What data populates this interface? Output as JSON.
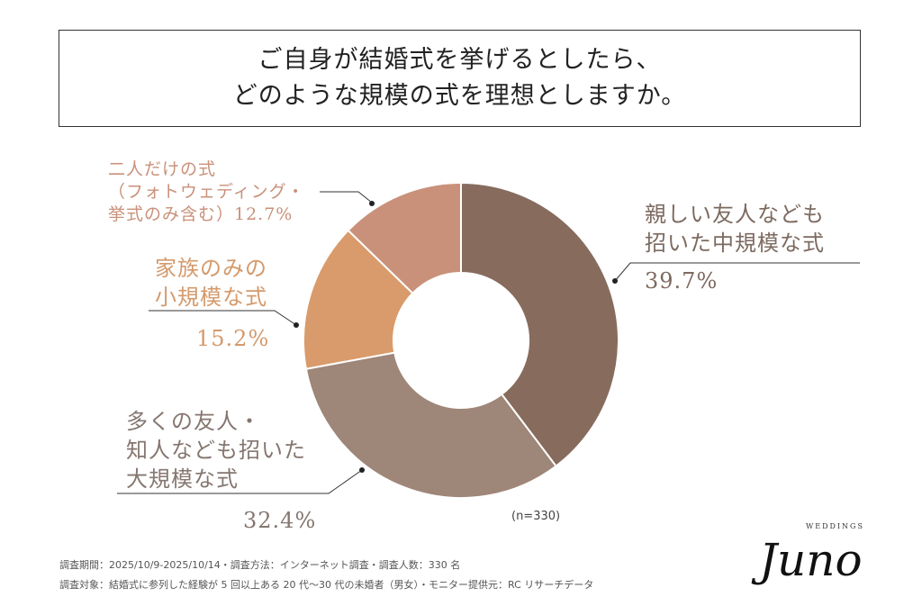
{
  "title": [
    "ご自身が結婚式を挙げるとしたら、",
    "どのような規模の式を理想としますか。"
  ],
  "chart_data": {
    "type": "pie",
    "donut": true,
    "start": "top, clockwise",
    "categories": [
      "親しい友人なども招いた中規模な式",
      "多くの友人・知人なども招いた大規模な式",
      "家族のみの小規模な式",
      "二人だけの式（フォトウェディング・挙式のみ含む）"
    ],
    "values": [
      39.7,
      32.4,
      15.2,
      12.7
    ],
    "colors": [
      "#876b5d",
      "#9e8678",
      "#d99b6b",
      "#c9917a"
    ],
    "labels": [
      {
        "lines": [
          "親しい友人なども",
          "招いた中規模な式"
        ],
        "value": "39.7%"
      },
      {
        "lines": [
          "多くの友人・",
          "知人なども招いた",
          "大規模な式"
        ],
        "value": "32.4%"
      },
      {
        "lines": [
          "家族のみの",
          "小規模な式"
        ],
        "value": "15.2%"
      },
      {
        "lines": [
          "二人だけの式",
          "（フォトウェディング・",
          "挙式のみ含む）12.7%"
        ]
      }
    ],
    "note": "(n=330)"
  },
  "footer": [
    "調査期間：2025/10/9-2025/10/14・調査方法：インターネット調査・調査人数：330 名",
    "調査対象：結婚式に参列した経験が 5 回以上ある 20 代〜30 代の未婚者（男女）・モニター提供元：RC リサーチデータ"
  ],
  "logo": {
    "name": "Juno",
    "sub": "WEDDINGS"
  }
}
